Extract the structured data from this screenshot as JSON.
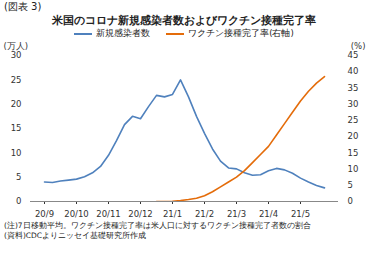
{
  "chart_data": {
    "type": "line",
    "figure_number": "(図表 3)",
    "title": "米国のコロナ新規感染者数およびワクチン接種完了率",
    "ylabel": "(万人)",
    "y2label": "(%)",
    "categories": [
      "20/9",
      null,
      null,
      null,
      "20/10",
      null,
      null,
      null,
      "20/11",
      null,
      null,
      null,
      "20/12",
      null,
      null,
      null,
      "21/1",
      null,
      null,
      null,
      "21/2",
      null,
      null,
      null,
      "21/3",
      null,
      null,
      null,
      "21/4",
      null,
      null,
      null,
      "21/5",
      null,
      null,
      null
    ],
    "series": [
      {
        "name": "新規感染者数",
        "color": "#4f81bd",
        "values": [
          4.0,
          3.9,
          4.2,
          4.4,
          4.6,
          5.1,
          5.9,
          7.2,
          9.5,
          12.5,
          15.8,
          17.5,
          17.0,
          19.5,
          21.8,
          21.5,
          22.0,
          25.0,
          21.5,
          17.5,
          14.0,
          10.8,
          8.3,
          6.9,
          6.7,
          5.9,
          5.4,
          5.5,
          6.3,
          6.8,
          6.5,
          5.8,
          4.8,
          4.0,
          3.3,
          2.8
        ]
      },
      {
        "name": "ワクチン接種完了率(右軸)",
        "color": "#e46c0a",
        "axis": "y2",
        "values": [
          null,
          null,
          null,
          null,
          null,
          null,
          null,
          null,
          null,
          null,
          null,
          null,
          null,
          null,
          0,
          0,
          0.1,
          0.3,
          0.6,
          1.0,
          1.8,
          3.0,
          4.5,
          6.0,
          7.5,
          9.5,
          12.0,
          14.5,
          17.0,
          20.5,
          24.0,
          27.5,
          31.0,
          34.0,
          36.5,
          38.5
        ]
      }
    ],
    "ylim": [
      0,
      30
    ],
    "yticks": [
      0,
      5,
      10,
      15,
      20,
      25,
      30
    ],
    "y2lim": [
      0,
      45
    ],
    "y2ticks": [
      0,
      5,
      10,
      15,
      20,
      25,
      30,
      35,
      40,
      45
    ],
    "grid": false,
    "legend": "top",
    "notes": [
      "(注)7日移動平均。ワクチン接種完了率は米人口に対するワクチン接種完了者数の割合",
      "(資料)CDCよりニッセイ基礎研究所作成"
    ]
  }
}
